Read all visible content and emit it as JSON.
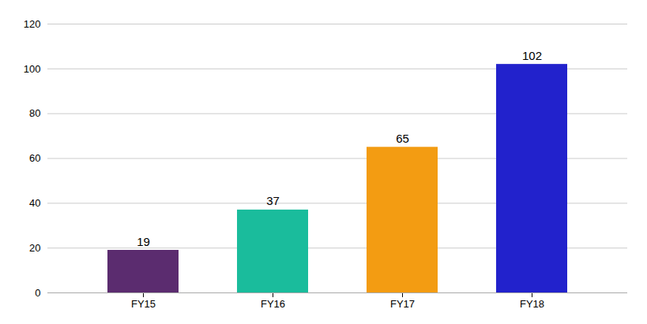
{
  "chart_data": {
    "type": "bar",
    "categories": [
      "FY15",
      "FY16",
      "FY17",
      "FY18"
    ],
    "values": [
      19,
      37,
      65,
      102
    ],
    "colors": [
      "#5b2c6f",
      "#1abc9c",
      "#f39c12",
      "#2222cc"
    ],
    "ylim": [
      0,
      120
    ],
    "yticks": [
      0,
      20,
      40,
      60,
      80,
      100,
      120
    ],
    "grid": true,
    "data_labels": true
  }
}
